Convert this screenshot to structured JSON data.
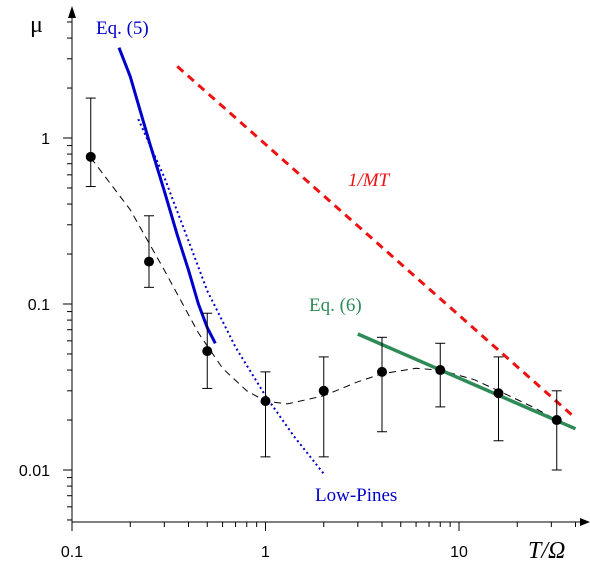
{
  "chart_data": {
    "type": "scatter",
    "x_scale": "log",
    "y_scale": "log",
    "xlabel": "T/Ω",
    "ylabel": "μ",
    "xlim": [
      0.1,
      40
    ],
    "ylim": [
      0.0045,
      5
    ],
    "grid": false,
    "x_ticks": [
      {
        "value": 0.1,
        "label": "0.1"
      },
      {
        "value": 1,
        "label": "1"
      },
      {
        "value": 10,
        "label": "10"
      }
    ],
    "y_ticks": [
      {
        "value": 0.01,
        "label": "0.01"
      },
      {
        "value": 0.1,
        "label": "0.1"
      },
      {
        "value": 1,
        "label": "1"
      }
    ],
    "points": [
      {
        "x": 0.125,
        "y": 0.77,
        "y_low": 0.51,
        "y_high": 1.74
      },
      {
        "x": 0.25,
        "y": 0.18,
        "y_low": 0.126,
        "y_high": 0.34
      },
      {
        "x": 0.5,
        "y": 0.052,
        "y_low": 0.031,
        "y_high": 0.088
      },
      {
        "x": 1,
        "y": 0.026,
        "y_low": 0.012,
        "y_high": 0.039
      },
      {
        "x": 2,
        "y": 0.03,
        "y_low": 0.012,
        "y_high": 0.048
      },
      {
        "x": 4,
        "y": 0.039,
        "y_low": 0.017,
        "y_high": 0.063
      },
      {
        "x": 8,
        "y": 0.04,
        "y_low": 0.024,
        "y_high": 0.058
      },
      {
        "x": 16,
        "y": 0.029,
        "y_low": 0.015,
        "y_high": 0.048
      },
      {
        "x": 32,
        "y": 0.02,
        "y_low": 0.01,
        "y_high": 0.03
      }
    ],
    "curves": [
      {
        "label": "",
        "color": "#000000",
        "style": "dashed",
        "x": [
          0.125,
          0.2,
          0.3,
          0.45,
          0.6,
          0.8,
          1,
          1.3,
          2,
          3,
          4,
          6,
          8,
          12,
          16,
          24,
          32,
          40
        ],
        "y": [
          0.76,
          0.37,
          0.16,
          0.067,
          0.041,
          0.03,
          0.026,
          0.025,
          0.028,
          0.034,
          0.038,
          0.041,
          0.04,
          0.035,
          0.03,
          0.024,
          0.02,
          0.018
        ]
      },
      {
        "label": "Eq. (5)",
        "color": "#0000cc",
        "style": "solid",
        "x": [
          0.175,
          0.2,
          0.25,
          0.3,
          0.35,
          0.4,
          0.45,
          0.5,
          0.55
        ],
        "y": [
          3.5,
          2.35,
          0.96,
          0.48,
          0.26,
          0.16,
          0.1,
          0.072,
          0.058
        ]
      },
      {
        "label": "Low-Pines",
        "color": "#0000cc",
        "style": "dotted",
        "x": [
          0.22,
          0.3,
          0.4,
          0.5,
          0.7,
          1,
          1.4,
          2
        ],
        "y": [
          1.3,
          0.58,
          0.24,
          0.12,
          0.055,
          0.028,
          0.016,
          0.0095
        ]
      },
      {
        "label": "Eq. (6)",
        "color": "#2e8b57",
        "style": "solid",
        "x": [
          3,
          40
        ],
        "y": [
          0.066,
          0.0177
        ]
      },
      {
        "label": "1/MT",
        "color": "#ee1111",
        "style": "dashed",
        "x": [
          0.35,
          40
        ],
        "y": [
          2.7,
          0.0205
        ]
      }
    ],
    "series_colors": {
      "points": "#000000",
      "eq5": "#0000cc",
      "lowpines": "#0000cc",
      "eq6": "#2e8b57",
      "onemt": "#ee1111"
    }
  }
}
